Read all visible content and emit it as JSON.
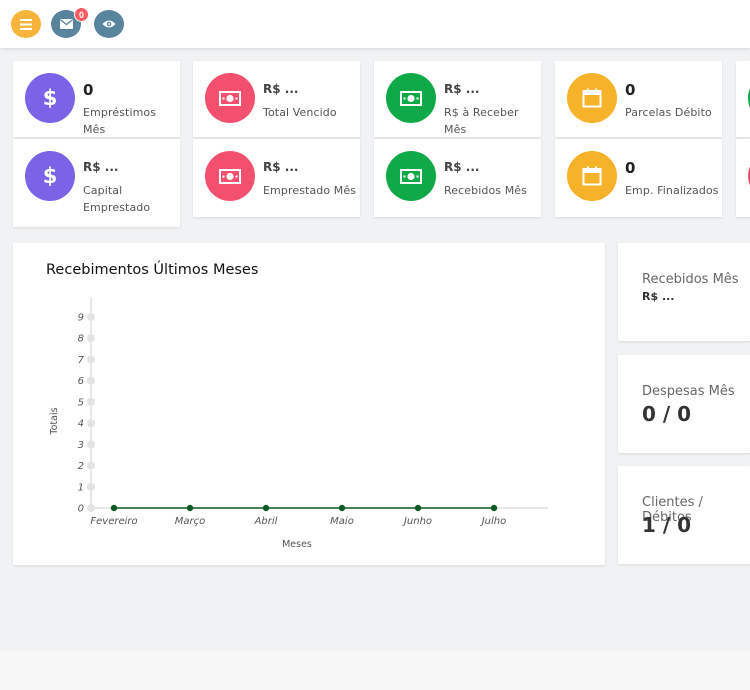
{
  "topbar": {
    "menu_icon": "bars-icon",
    "mail_icon": "envelope-icon",
    "mail_badge": "0",
    "eye_icon": "eye-icon"
  },
  "stats_row1": [
    {
      "value": "0",
      "label": "Empréstimos Mês",
      "icon": "dollar-icon",
      "color": "#7b63e8"
    },
    {
      "value": "R$ ...",
      "label": "Total Vencido",
      "icon": "money-icon",
      "color": "#f2506e"
    },
    {
      "value": "R$ ...",
      "label": "R$ à Receber Mês",
      "icon": "money-icon",
      "color": "#10a948"
    },
    {
      "value": "0",
      "label": "Parcelas Débito",
      "icon": "calendar-icon",
      "color": "#f6b229"
    }
  ],
  "stats_row2": [
    {
      "value": "R$ ...",
      "label": "Capital Emprestado",
      "icon": "dollar-icon",
      "color": "#7b63e8"
    },
    {
      "value": "R$ ...",
      "label": "Emprestado Mês",
      "icon": "money-icon",
      "color": "#f2506e"
    },
    {
      "value": "R$ ...",
      "label": "Recebidos Mês",
      "icon": "money-icon",
      "color": "#10a948"
    },
    {
      "value": "0",
      "label": "Emp. Finalizados",
      "icon": "calendar-icon",
      "color": "#f6b229"
    }
  ],
  "chart_title": "Recebimentos Últimos Meses",
  "chart_data": {
    "type": "line",
    "title": "Recebimentos Últimos Meses",
    "xlabel": "Meses",
    "ylabel": "Totais",
    "categories": [
      "Fevereiro",
      "Março",
      "Abril",
      "Maio",
      "Junho",
      "Julho"
    ],
    "series": [
      {
        "values": [
          0,
          0,
          0,
          0,
          0,
          0
        ],
        "color": "#0f5a22"
      }
    ],
    "yticks": [
      0,
      1,
      2,
      3,
      4,
      5,
      6,
      7,
      8,
      9
    ],
    "ylim": [
      0,
      9
    ],
    "grid": false,
    "legend": "none"
  },
  "summary": [
    {
      "label": "Recebidos Mês",
      "value": "R$ ..."
    },
    {
      "label": "Despesas Mês",
      "value": "0 / 0"
    },
    {
      "label": "Clientes / Débitos",
      "value": "1 / 0"
    }
  ]
}
